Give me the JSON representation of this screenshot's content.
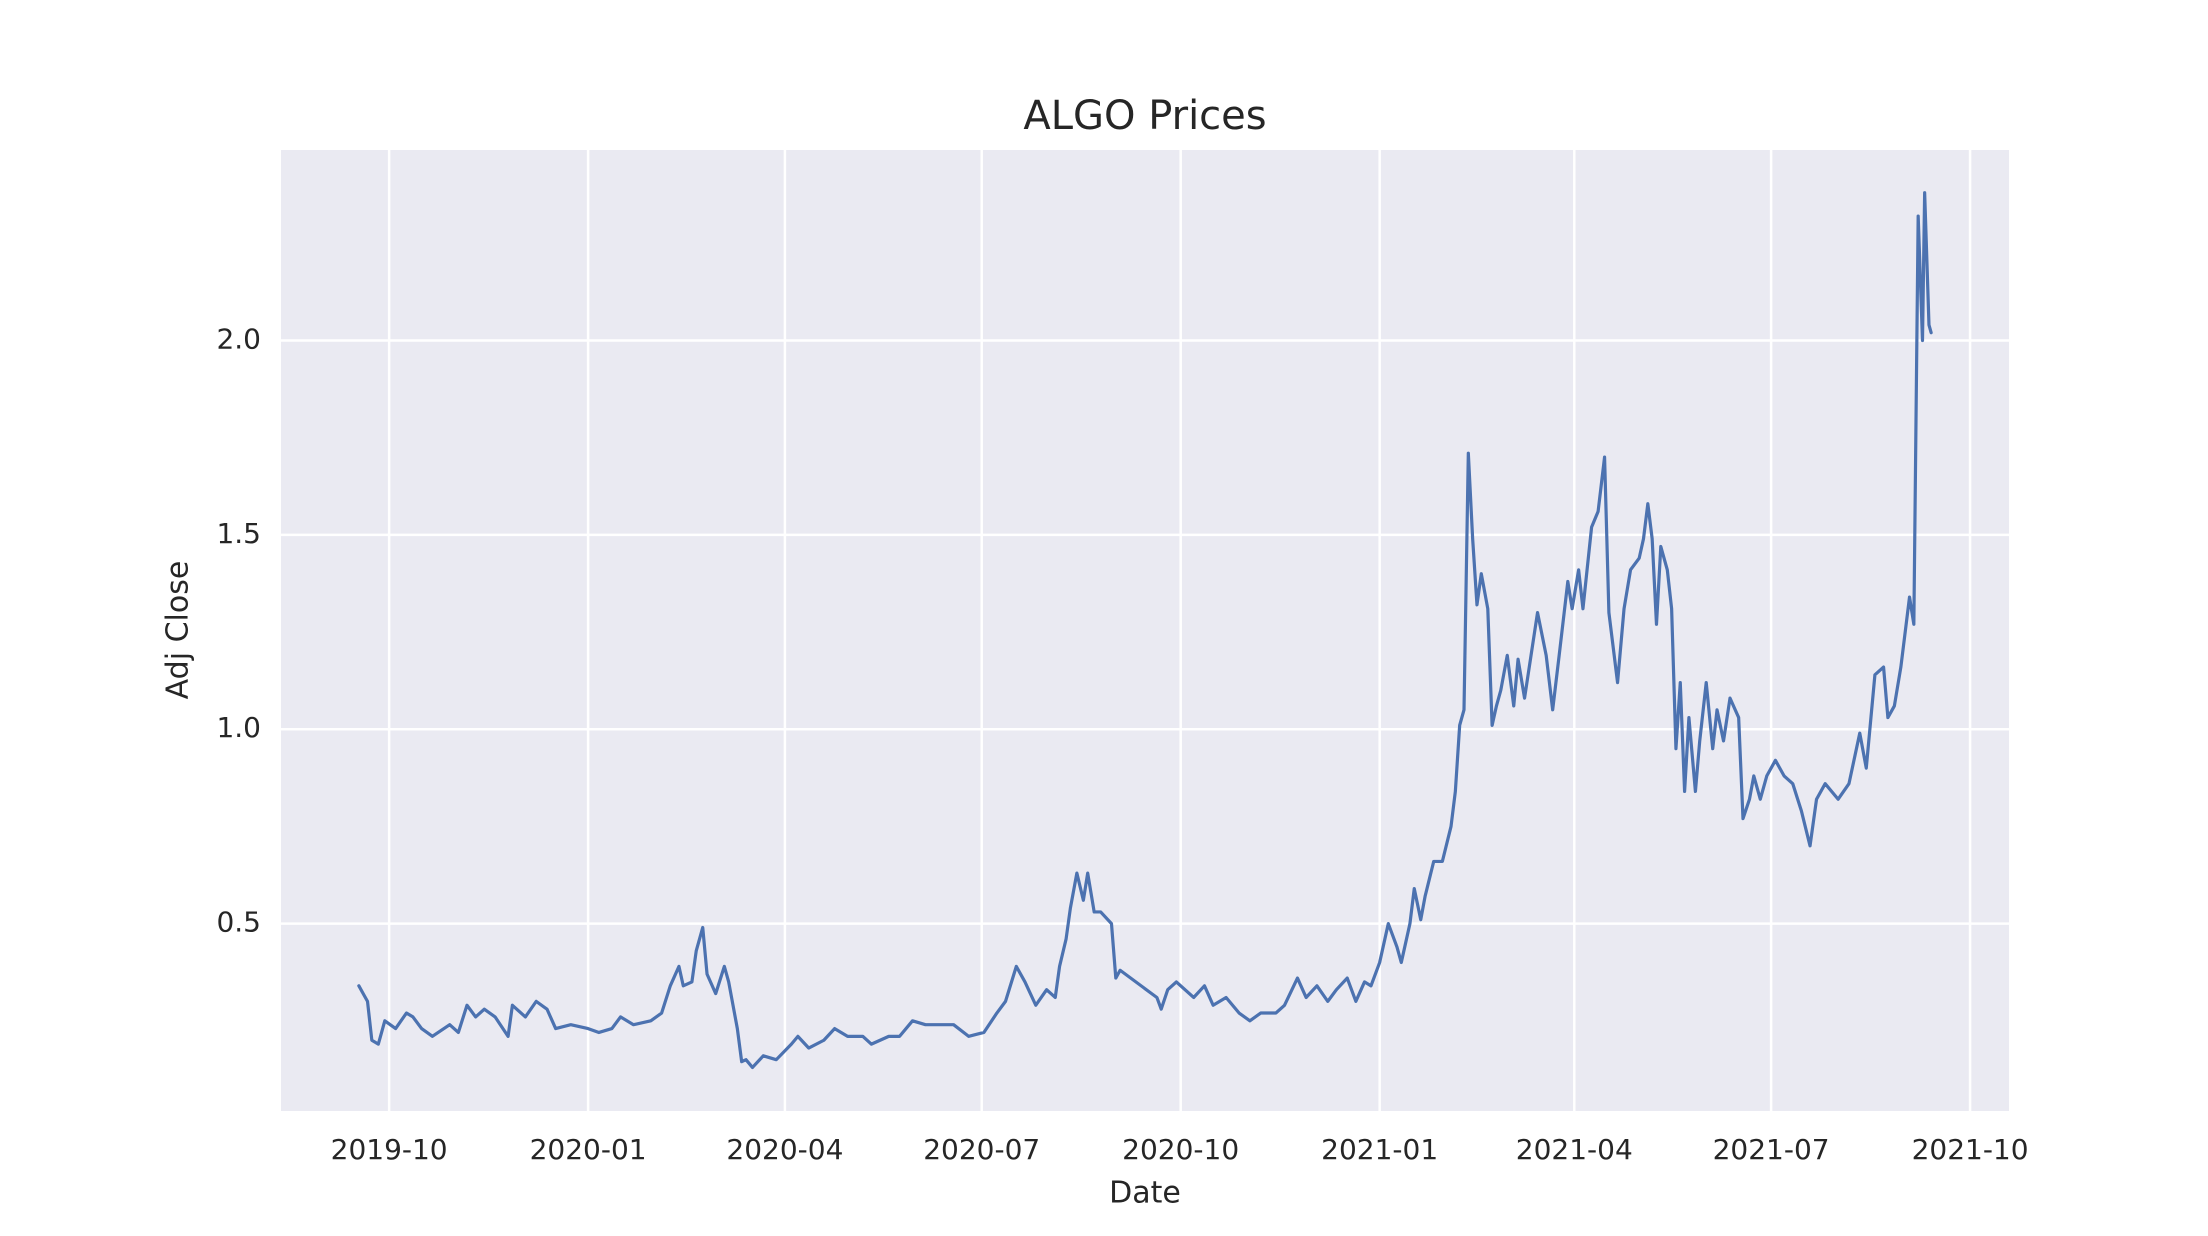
{
  "chart_data": {
    "type": "line",
    "title": "ALGO Prices",
    "x_label": "Date",
    "y_label": "Adj Close",
    "color": "#4c72b0",
    "grid": true,
    "xlim": [
      "2019-08-12",
      "2021-10-19"
    ],
    "ylim": [
      0.018,
      2.49
    ],
    "xticks": [
      "2019-10",
      "2020-01",
      "2020-04",
      "2020-07",
      "2020-10",
      "2021-01",
      "2021-04",
      "2021-07",
      "2021-10"
    ],
    "yticks": [
      0.5,
      {
        "value": 1,
        "label": "1.0"
      },
      1.5,
      {
        "value": 2,
        "label": "2.0"
      }
    ],
    "x": [
      "2019-09-17",
      "2019-09-19",
      "2019-09-21",
      "2019-09-23",
      "2019-09-26",
      "2019-09-29",
      "2019-10-04",
      "2019-10-09",
      "2019-10-12",
      "2019-10-16",
      "2019-10-21",
      "2019-10-29",
      "2019-11-02",
      "2019-11-06",
      "2019-11-10",
      "2019-11-14",
      "2019-11-19",
      "2019-11-25",
      "2019-11-27",
      "2019-12-03",
      "2019-12-08",
      "2019-12-13",
      "2019-12-17",
      "2019-12-24",
      "2020-01-01",
      "2020-01-06",
      "2020-01-12",
      "2020-01-16",
      "2020-01-22",
      "2020-01-30",
      "2020-02-04",
      "2020-02-08",
      "2020-02-12",
      "2020-02-14",
      "2020-02-18",
      "2020-02-20",
      "2020-02-23",
      "2020-02-25",
      "2020-02-29",
      "2020-03-04",
      "2020-03-06",
      "2020-03-08",
      "2020-03-10",
      "2020-03-12",
      "2020-03-14",
      "2020-03-17",
      "2020-03-22",
      "2020-03-28",
      "2020-04-04",
      "2020-04-07",
      "2020-04-12",
      "2020-04-19",
      "2020-04-24",
      "2020-04-30",
      "2020-05-07",
      "2020-05-11",
      "2020-05-19",
      "2020-05-24",
      "2020-05-30",
      "2020-06-05",
      "2020-06-12",
      "2020-06-18",
      "2020-06-25",
      "2020-07-02",
      "2020-07-08",
      "2020-07-12",
      "2020-07-17",
      "2020-07-21",
      "2020-07-26",
      "2020-07-31",
      "2020-08-04",
      "2020-08-06",
      "2020-08-09",
      "2020-08-11",
      "2020-08-14",
      "2020-08-17",
      "2020-08-19",
      "2020-08-22",
      "2020-08-25",
      "2020-08-30",
      "2020-09-01",
      "2020-09-03",
      "2020-09-20",
      "2020-09-22",
      "2020-09-25",
      "2020-09-29",
      "2020-10-03",
      "2020-10-07",
      "2020-10-12",
      "2020-10-16",
      "2020-10-22",
      "2020-10-28",
      "2020-11-02",
      "2020-11-07",
      "2020-11-14",
      "2020-11-18",
      "2020-11-24",
      "2020-11-28",
      "2020-12-03",
      "2020-12-08",
      "2020-12-12",
      "2020-12-17",
      "2020-12-21",
      "2020-12-25",
      "2020-12-28",
      "2021-01-01",
      "2021-01-05",
      "2021-01-09",
      "2021-01-11",
      "2021-01-15",
      "2021-01-17",
      "2021-01-20",
      "2021-01-22",
      "2021-01-26",
      "2021-01-30",
      "2021-02-03",
      "2021-02-05",
      "2021-02-07",
      "2021-02-09",
      "2021-02-11",
      "2021-02-13",
      "2021-02-15",
      "2021-02-17",
      "2021-02-20",
      "2021-02-22",
      "2021-02-24",
      "2021-02-26",
      "2021-03-01",
      "2021-03-04",
      "2021-03-06",
      "2021-03-09",
      "2021-03-12",
      "2021-03-15",
      "2021-03-19",
      "2021-03-22",
      "2021-03-25",
      "2021-03-29",
      "2021-03-31",
      "2021-04-03",
      "2021-04-05",
      "2021-04-09",
      "2021-04-12",
      "2021-04-15",
      "2021-04-17",
      "2021-04-21",
      "2021-04-24",
      "2021-04-27",
      "2021-05-01",
      "2021-05-03",
      "2021-05-05",
      "2021-05-07",
      "2021-05-09",
      "2021-05-11",
      "2021-05-14",
      "2021-05-16",
      "2021-05-18",
      "2021-05-20",
      "2021-05-22",
      "2021-05-24",
      "2021-05-27",
      "2021-05-29",
      "2021-06-01",
      "2021-06-04",
      "2021-06-06",
      "2021-06-09",
      "2021-06-12",
      "2021-06-16",
      "2021-06-18",
      "2021-06-21",
      "2021-06-23",
      "2021-06-26",
      "2021-06-29",
      "2021-07-03",
      "2021-07-07",
      "2021-07-11",
      "2021-07-15",
      "2021-07-19",
      "2021-07-22",
      "2021-07-26",
      "2021-08-01",
      "2021-08-06",
      "2021-08-11",
      "2021-08-14",
      "2021-08-18",
      "2021-08-22",
      "2021-08-24",
      "2021-08-27",
      "2021-08-30",
      "2021-09-03",
      "2021-09-05",
      "2021-09-07",
      "2021-09-09",
      "2021-09-10",
      "2021-09-12",
      "2021-09-13"
    ],
    "values": [
      0.34,
      0.32,
      0.3,
      0.2,
      0.19,
      0.25,
      0.23,
      0.27,
      0.26,
      0.23,
      0.21,
      0.24,
      0.22,
      0.29,
      0.26,
      0.28,
      0.26,
      0.21,
      0.29,
      0.26,
      0.3,
      0.28,
      0.23,
      0.24,
      0.23,
      0.22,
      0.23,
      0.26,
      0.24,
      0.25,
      0.27,
      0.34,
      0.39,
      0.34,
      0.35,
      0.43,
      0.49,
      0.37,
      0.32,
      0.39,
      0.35,
      0.29,
      0.23,
      0.145,
      0.15,
      0.13,
      0.16,
      0.15,
      0.19,
      0.21,
      0.18,
      0.2,
      0.23,
      0.21,
      0.21,
      0.19,
      0.21,
      0.21,
      0.25,
      0.24,
      0.24,
      0.24,
      0.21,
      0.22,
      0.27,
      0.3,
      0.39,
      0.35,
      0.29,
      0.33,
      0.31,
      0.39,
      0.46,
      0.54,
      0.63,
      0.56,
      0.63,
      0.53,
      0.53,
      0.5,
      0.36,
      0.38,
      0.31,
      0.28,
      0.33,
      0.35,
      0.33,
      0.31,
      0.34,
      0.29,
      0.31,
      0.27,
      0.25,
      0.27,
      0.27,
      0.29,
      0.36,
      0.31,
      0.34,
      0.3,
      0.33,
      0.36,
      0.3,
      0.35,
      0.34,
      0.4,
      0.5,
      0.44,
      0.4,
      0.5,
      0.59,
      0.51,
      0.57,
      0.66,
      0.66,
      0.75,
      0.84,
      1.01,
      1.05,
      1.71,
      1.49,
      1.32,
      1.4,
      1.31,
      1.01,
      1.06,
      1.1,
      1.19,
      1.06,
      1.18,
      1.08,
      1.19,
      1.3,
      1.19,
      1.05,
      1.19,
      1.38,
      1.31,
      1.41,
      1.31,
      1.52,
      1.56,
      1.7,
      1.3,
      1.12,
      1.31,
      1.41,
      1.44,
      1.49,
      1.58,
      1.49,
      1.27,
      1.47,
      1.41,
      1.31,
      0.95,
      1.12,
      0.84,
      1.03,
      0.84,
      0.97,
      1.12,
      0.95,
      1.05,
      0.97,
      1.08,
      1.03,
      0.77,
      0.82,
      0.88,
      0.82,
      0.88,
      0.92,
      0.88,
      0.86,
      0.79,
      0.7,
      0.82,
      0.86,
      0.82,
      0.86,
      0.99,
      0.9,
      1.14,
      1.16,
      1.03,
      1.06,
      1.16,
      1.34,
      1.27,
      2.32,
      2.0,
      2.38,
      2.04,
      2.02
    ]
  }
}
